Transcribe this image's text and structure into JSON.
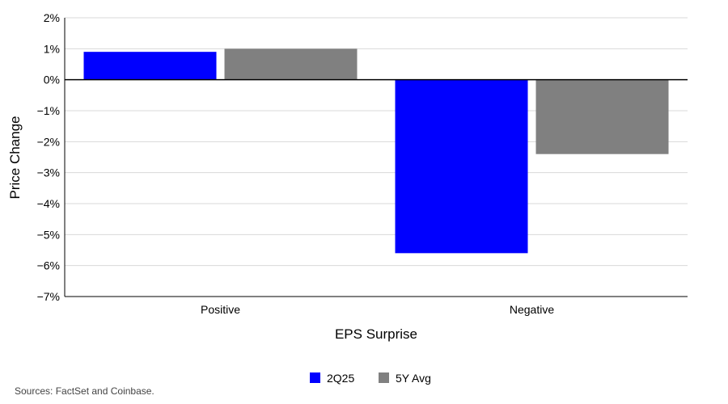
{
  "chart_data": {
    "type": "bar",
    "categories": [
      "Positive",
      "Negative"
    ],
    "series": [
      {
        "name": "2Q25",
        "values": [
          0.9,
          -5.6
        ],
        "color": "#0000ff"
      },
      {
        "name": "5Y Avg",
        "values": [
          1.0,
          -2.4
        ],
        "color": "#808080"
      }
    ],
    "xlabel": "EPS Surprise",
    "ylabel": "Price Change",
    "ylim": [
      -7,
      2
    ],
    "yticks": [
      2,
      1,
      0,
      -1,
      -2,
      -3,
      -4,
      -5,
      -6,
      -7
    ],
    "ytick_suffix": "%",
    "grid": true,
    "legend": "bottom-center"
  },
  "source": "Sources: FactSet and Coinbase."
}
